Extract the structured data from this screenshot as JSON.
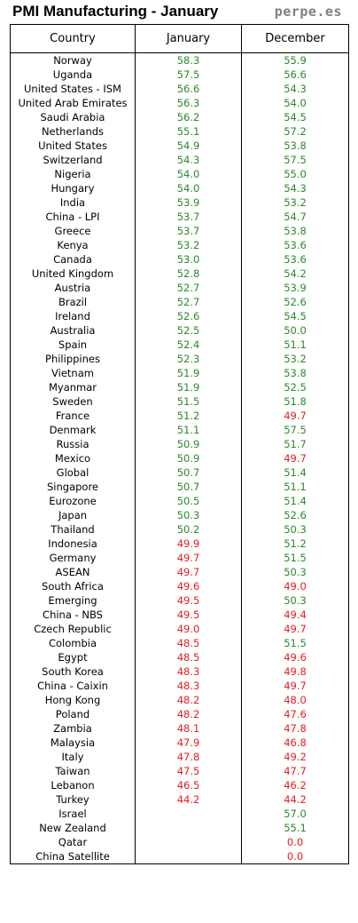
{
  "title": "PMI Manufacturing - January",
  "brand": "perpe.es",
  "colors": {
    "above_50": "#2a8a2a",
    "below_50": "#e02020"
  },
  "chart_data": {
    "type": "table",
    "columns": [
      "Country",
      "January",
      "December"
    ],
    "rows": [
      [
        "Norway",
        "58.3",
        "55.9"
      ],
      [
        "Uganda",
        "57.5",
        "56.6"
      ],
      [
        "United States - ISM",
        "56.6",
        "54.3"
      ],
      [
        "United Arab Emirates",
        "56.3",
        "54.0"
      ],
      [
        "Saudi Arabia",
        "56.2",
        "54.5"
      ],
      [
        "Netherlands",
        "55.1",
        "57.2"
      ],
      [
        "United States",
        "54.9",
        "53.8"
      ],
      [
        "Switzerland",
        "54.3",
        "57.5"
      ],
      [
        "Nigeria",
        "54.0",
        "55.0"
      ],
      [
        "Hungary",
        "54.0",
        "54.3"
      ],
      [
        "India",
        "53.9",
        "53.2"
      ],
      [
        "China - LPI",
        "53.7",
        "54.7"
      ],
      [
        "Greece",
        "53.7",
        "53.8"
      ],
      [
        "Kenya",
        "53.2",
        "53.6"
      ],
      [
        "Canada",
        "53.0",
        "53.6"
      ],
      [
        "United Kingdom",
        "52.8",
        "54.2"
      ],
      [
        "Austria",
        "52.7",
        "53.9"
      ],
      [
        "Brazil",
        "52.7",
        "52.6"
      ],
      [
        "Ireland",
        "52.6",
        "54.5"
      ],
      [
        "Australia",
        "52.5",
        "50.0"
      ],
      [
        "Spain",
        "52.4",
        "51.1"
      ],
      [
        "Philippines",
        "52.3",
        "53.2"
      ],
      [
        "Vietnam",
        "51.9",
        "53.8"
      ],
      [
        "Myanmar",
        "51.9",
        "52.5"
      ],
      [
        "Sweden",
        "51.5",
        "51.8"
      ],
      [
        "France",
        "51.2",
        "49.7"
      ],
      [
        "Denmark",
        "51.1",
        "57.5"
      ],
      [
        "Russia",
        "50.9",
        "51.7"
      ],
      [
        "Mexico",
        "50.9",
        "49.7"
      ],
      [
        "Global",
        "50.7",
        "51.4"
      ],
      [
        "Singapore",
        "50.7",
        "51.1"
      ],
      [
        "Eurozone",
        "50.5",
        "51.4"
      ],
      [
        "Japan",
        "50.3",
        "52.6"
      ],
      [
        "Thailand",
        "50.2",
        "50.3"
      ],
      [
        "Indonesia",
        "49.9",
        "51.2"
      ],
      [
        "Germany",
        "49.7",
        "51.5"
      ],
      [
        "ASEAN",
        "49.7",
        "50.3"
      ],
      [
        "South Africa",
        "49.6",
        "49.0"
      ],
      [
        "Emerging",
        "49.5",
        "50.3"
      ],
      [
        "China - NBS",
        "49.5",
        "49.4"
      ],
      [
        "Czech Republic",
        "49.0",
        "49.7"
      ],
      [
        "Colombia",
        "48.5",
        "51.5"
      ],
      [
        "Egypt",
        "48.5",
        "49.6"
      ],
      [
        "South Korea",
        "48.3",
        "49.8"
      ],
      [
        "China - Caixin",
        "48.3",
        "49.7"
      ],
      [
        "Hong Kong",
        "48.2",
        "48.0"
      ],
      [
        "Poland",
        "48.2",
        "47.6"
      ],
      [
        "Zambia",
        "48.1",
        "47.8"
      ],
      [
        "Malaysia",
        "47.9",
        "46.8"
      ],
      [
        "Italy",
        "47.8",
        "49.2"
      ],
      [
        "Taiwan",
        "47.5",
        "47.7"
      ],
      [
        "Lebanon",
        "46.5",
        "46.2"
      ],
      [
        "Turkey",
        "44.2",
        "44.2"
      ],
      [
        "Israel",
        "",
        "57.0"
      ],
      [
        "New Zealand",
        "",
        "55.1"
      ],
      [
        "Qatar",
        "",
        "0.0"
      ],
      [
        "China Satellite",
        "",
        "0.0"
      ]
    ]
  }
}
